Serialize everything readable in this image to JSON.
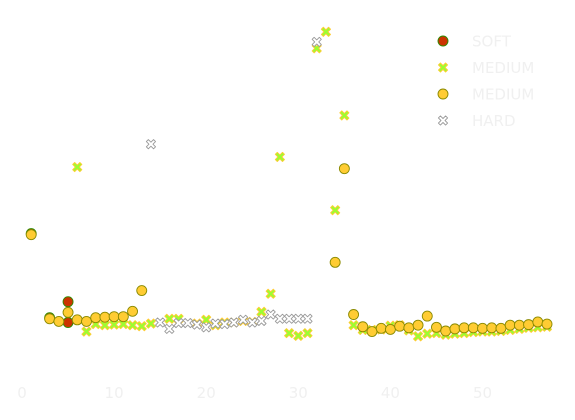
{
  "chart_data": {
    "type": "scatter",
    "title": "",
    "xlabel": "",
    "ylabel": "",
    "xlim": [
      0,
      57
    ],
    "ylim": [
      0,
      65
    ],
    "grid": false,
    "legend_placement": "top-right",
    "x_ticks": [
      "0",
      "10",
      "20",
      "30",
      "40",
      "50"
    ],
    "series": [
      {
        "name": "SOFT",
        "marker": "circle",
        "fill": "#cc3300",
        "edge": "#2e8b00",
        "points": [
          [
            1,
            26.0
          ],
          [
            3,
            10.2
          ],
          [
            5,
            9.3
          ],
          [
            5,
            13.2
          ]
        ]
      },
      {
        "name": "MEDIUM",
        "marker": "x",
        "fill": "#99ff33",
        "edge": "#ffcc33",
        "points": [
          [
            6,
            38.5
          ],
          [
            7,
            7.6
          ],
          [
            8,
            9.0
          ],
          [
            9,
            8.8
          ],
          [
            10,
            8.9
          ],
          [
            11,
            9.0
          ],
          [
            12,
            8.8
          ],
          [
            13,
            8.6
          ],
          [
            14,
            9.1
          ],
          [
            16,
            10.0
          ],
          [
            17,
            10.0
          ],
          [
            19,
            9.1
          ],
          [
            20,
            9.8
          ],
          [
            21,
            8.8
          ],
          [
            22,
            9.3
          ],
          [
            23,
            9.3
          ],
          [
            24,
            9.6
          ],
          [
            25,
            9.4
          ],
          [
            26,
            11.3
          ],
          [
            27,
            14.7
          ],
          [
            28,
            40.4
          ],
          [
            29,
            7.3
          ],
          [
            30,
            6.8
          ],
          [
            31,
            7.3
          ],
          [
            32,
            60.8
          ],
          [
            33,
            63.9
          ],
          [
            34,
            30.4
          ],
          [
            35,
            48.2
          ],
          [
            36,
            8.8
          ],
          [
            37,
            7.9
          ],
          [
            38,
            7.9
          ],
          [
            39,
            8.0
          ],
          [
            40,
            8.7
          ],
          [
            41,
            8.8
          ],
          [
            42,
            7.8
          ],
          [
            43,
            6.7
          ],
          [
            44,
            7.2
          ],
          [
            45,
            7.3
          ],
          [
            46,
            7.0
          ],
          [
            47,
            7.2
          ],
          [
            48,
            7.3
          ],
          [
            49,
            7.5
          ],
          [
            50,
            7.6
          ],
          [
            51,
            7.6
          ],
          [
            52,
            7.7
          ],
          [
            53,
            7.9
          ],
          [
            54,
            8.1
          ],
          [
            55,
            8.3
          ],
          [
            56,
            8.4
          ],
          [
            57,
            8.5
          ]
        ]
      },
      {
        "name": "MEDIUM",
        "marker": "circle",
        "fill": "#ffcc33",
        "edge": "#8a8a00",
        "points": [
          [
            1,
            25.8
          ],
          [
            3,
            10.0
          ],
          [
            4,
            9.5
          ],
          [
            5,
            11.2
          ],
          [
            6,
            9.8
          ],
          [
            7,
            9.5
          ],
          [
            8,
            10.2
          ],
          [
            9,
            10.3
          ],
          [
            10,
            10.4
          ],
          [
            11,
            10.4
          ],
          [
            12,
            11.4
          ],
          [
            13,
            15.3
          ],
          [
            35,
            38.2
          ],
          [
            34,
            20.6
          ],
          [
            36,
            10.8
          ],
          [
            37,
            8.5
          ],
          [
            38,
            7.6
          ],
          [
            39,
            8.2
          ],
          [
            40,
            8.0
          ],
          [
            41,
            8.6
          ],
          [
            42,
            8.3
          ],
          [
            43,
            8.8
          ],
          [
            44,
            10.5
          ],
          [
            45,
            8.4
          ],
          [
            46,
            7.7
          ],
          [
            47,
            8.1
          ],
          [
            48,
            8.3
          ],
          [
            49,
            8.3
          ],
          [
            50,
            8.2
          ],
          [
            51,
            8.3
          ],
          [
            52,
            8.2
          ],
          [
            53,
            8.8
          ],
          [
            54,
            8.8
          ],
          [
            55,
            8.9
          ],
          [
            56,
            9.4
          ],
          [
            57,
            9.0
          ]
        ]
      },
      {
        "name": "HARD",
        "marker": "x",
        "fill": "#ffffff",
        "edge": "#999999",
        "points": [
          [
            14,
            42.8
          ],
          [
            15,
            9.3
          ],
          [
            16,
            8.1
          ],
          [
            17,
            9.2
          ],
          [
            18,
            9.2
          ],
          [
            19,
            8.9
          ],
          [
            20,
            8.4
          ],
          [
            21,
            9.1
          ],
          [
            22,
            9.0
          ],
          [
            23,
            9.3
          ],
          [
            24,
            9.8
          ],
          [
            25,
            9.3
          ],
          [
            26,
            9.6
          ],
          [
            27,
            10.8
          ],
          [
            28,
            10.0
          ],
          [
            29,
            10.0
          ],
          [
            30,
            10.0
          ],
          [
            31,
            10.0
          ],
          [
            32,
            62.0
          ]
        ]
      }
    ]
  }
}
